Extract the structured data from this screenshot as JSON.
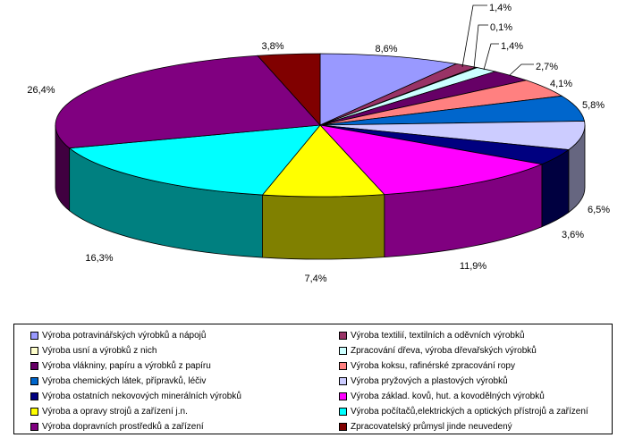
{
  "chart_data": {
    "type": "pie",
    "title": "",
    "labels": [
      "Výroba potravinářských výrobků a nápojů",
      "Výroba textilií, textilních a oděvních výrobků",
      "Výroba usní a výrobků z nich",
      "Zpracování dřeva, výroba dřevařských výrobků",
      "Výroba vlákniny, papíru a výrobků z papíru",
      "Výroba koksu, rafinérské zpracování ropy",
      "Výroba chemických látek, přípravků, léčiv",
      "Výroba pryžových a plastových výrobků",
      "Výroba ostatních nekovových minerálních výrobků",
      "Výroba základ. kovů, hut. a kovodělných  výrobků",
      "Výroba a opravy strojů a zařízení j.n.",
      "Výroba počítačů,elektrických a optických přístrojů a zařízení",
      "Výroba dopravních prostředků a zařízení",
      "Zpracovatelský průmysl jinde neuvedený"
    ],
    "values": [
      8.6,
      1.4,
      0.1,
      1.4,
      2.7,
      4.1,
      5.8,
      6.5,
      3.6,
      11.9,
      7.4,
      16.3,
      26.4,
      3.8
    ],
    "value_labels": [
      "8,6%",
      "1,4%",
      "0,1%",
      "1,4%",
      "2,7%",
      "4,1%",
      "5,8%",
      "6,5%",
      "3,6%",
      "11,9%",
      "7,4%",
      "16,3%",
      "26,4%",
      "3,8%"
    ],
    "colors": [
      "#9999ff",
      "#993366",
      "#ffffcc",
      "#ccffff",
      "#660066",
      "#ff8080",
      "#0066cc",
      "#ccccff",
      "#000080",
      "#ff00ff",
      "#ffff00",
      "#00ffff",
      "#800080",
      "#800000"
    ],
    "legend_position": "bottom",
    "three_d": true
  }
}
